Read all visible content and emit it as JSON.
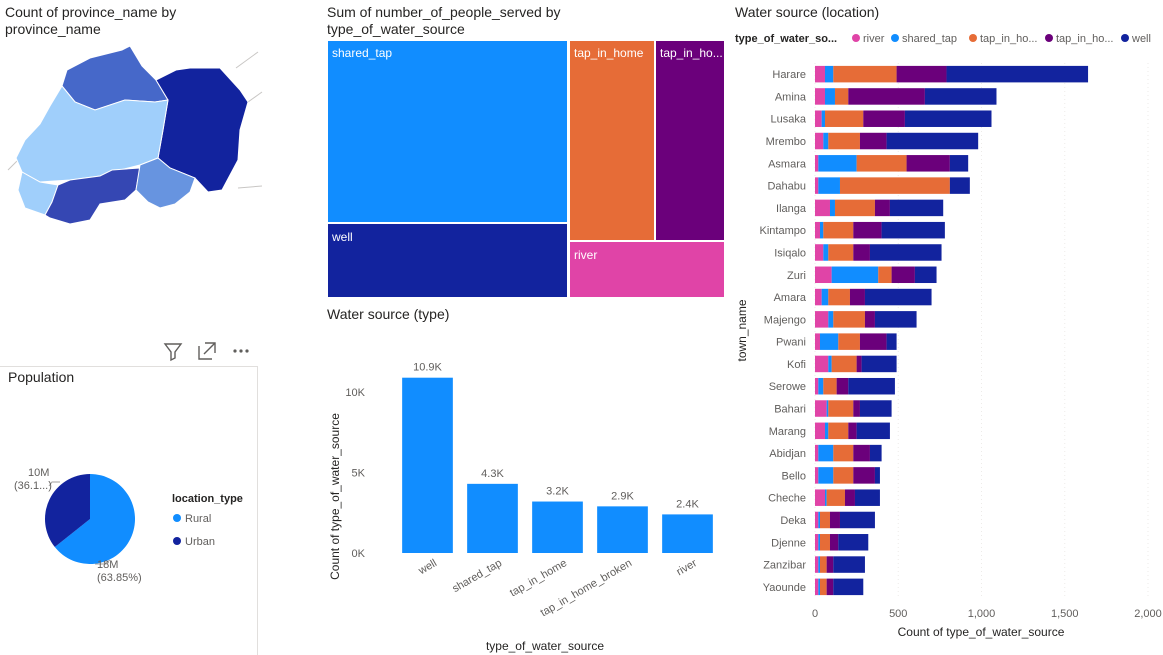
{
  "map": {
    "title": "Count of province_name by province_name"
  },
  "treemap": {
    "title": "Sum of number_of_people_served by type_of_water_source",
    "labels": [
      "shared_tap",
      "tap_in_home",
      "tap_in_ho...",
      "well",
      "river"
    ],
    "colors": [
      "#118dff",
      "#e66c37",
      "#6b007b",
      "#12239e",
      "#e044a7"
    ]
  },
  "population": {
    "title": "Population",
    "legend_title": "location_type",
    "toolbar": [
      "filter-icon",
      "focus-mode-icon",
      "more-options-icon"
    ]
  },
  "chart_data": [
    {
      "type": "pie",
      "title": "Population",
      "legend_title": "location_type",
      "legend_position": "right",
      "slices": [
        {
          "label": "Rural",
          "value": 18,
          "value_label": "18M",
          "pct_label": "(63.85%)",
          "color": "#118dff"
        },
        {
          "label": "Urban",
          "value": 10,
          "value_label": "10M",
          "pct_label": "(36.1...)",
          "color": "#12239e"
        }
      ]
    },
    {
      "type": "bar",
      "title": "Water source (type)",
      "xlabel": "type_of_water_source",
      "ylabel": "Count of type_of_water_source",
      "categories": [
        "well",
        "shared_tap",
        "tap_in_home",
        "tap_in_home_broken",
        "river"
      ],
      "values": [
        10900,
        4300,
        3200,
        2900,
        2400
      ],
      "data_labels": [
        "10.9K",
        "4.3K",
        "3.2K",
        "2.9K",
        "2.4K"
      ],
      "ylim": [
        0,
        12000
      ],
      "yticks": [
        0,
        5000,
        10000
      ],
      "ytick_labels": [
        "0K",
        "5K",
        "10K"
      ],
      "color": "#118dff",
      "grid": false
    },
    {
      "type": "bar",
      "orientation": "horizontal",
      "stacked": true,
      "title": "Water source (location)",
      "xlabel": "Count of type_of_water_source",
      "ylabel": "town_name",
      "legend_title": "type_of_water_so...",
      "legend_position": "top",
      "xlim": [
        0,
        2000
      ],
      "xticks": [
        0,
        500,
        1000,
        1500,
        2000
      ],
      "xtick_labels": [
        "0",
        "500",
        "1,000",
        "1,500",
        "2,000"
      ],
      "categories": [
        "Harare",
        "Amina",
        "Lusaka",
        "Mrembo",
        "Asmara",
        "Dahabu",
        "Ilanga",
        "Kintampo",
        "Isiqalo",
        "Zuri",
        "Amara",
        "Majengo",
        "Pwani",
        "Kofi",
        "Serowe",
        "Bahari",
        "Marang",
        "Abidjan",
        "Bello",
        "Cheche",
        "Deka",
        "Djenne",
        "Zanzibar",
        "Yaounde"
      ],
      "series": [
        {
          "name": "river",
          "legend_label": "river",
          "color": "#e044a7",
          "values": [
            60,
            60,
            40,
            50,
            20,
            20,
            90,
            30,
            50,
            100,
            40,
            80,
            30,
            80,
            20,
            70,
            60,
            20,
            20,
            60,
            20,
            20,
            20,
            20
          ]
        },
        {
          "name": "shared_tap",
          "legend_label": "shared_tap",
          "color": "#118dff",
          "values": [
            50,
            60,
            20,
            30,
            230,
            130,
            30,
            20,
            30,
            280,
            40,
            30,
            110,
            20,
            30,
            10,
            20,
            90,
            90,
            10,
            10,
            10,
            10,
            10
          ]
        },
        {
          "name": "tap_in_home",
          "legend_label": "tap_in_ho...",
          "color": "#e66c37",
          "values": [
            380,
            80,
            230,
            190,
            300,
            660,
            240,
            180,
            150,
            80,
            130,
            190,
            130,
            150,
            80,
            150,
            120,
            120,
            120,
            110,
            60,
            60,
            40,
            40
          ]
        },
        {
          "name": "tap_in_home_broken",
          "legend_label": "tap_in_ho...",
          "color": "#6b007b",
          "values": [
            300,
            460,
            250,
            160,
            260,
            0,
            90,
            170,
            100,
            140,
            90,
            60,
            160,
            30,
            70,
            40,
            50,
            100,
            130,
            60,
            60,
            50,
            40,
            40
          ]
        },
        {
          "name": "well",
          "legend_label": "well",
          "color": "#12239e",
          "values": [
            850,
            430,
            520,
            550,
            110,
            120,
            320,
            380,
            430,
            130,
            400,
            250,
            60,
            210,
            280,
            190,
            200,
            70,
            30,
            150,
            210,
            180,
            190,
            180
          ]
        }
      ]
    }
  ]
}
